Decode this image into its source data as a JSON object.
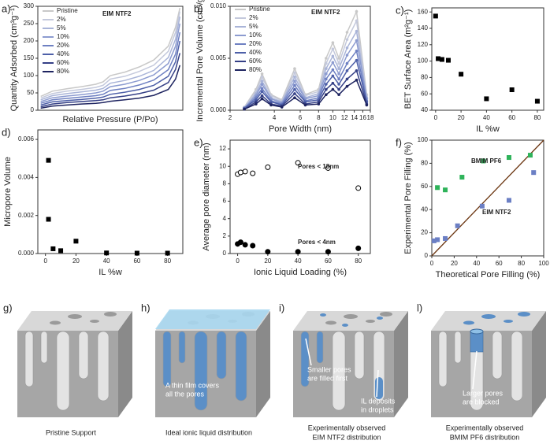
{
  "chart_data": [
    {
      "type": "line",
      "panel_label": "a)",
      "x_label": "Relative Pressure (P/Po)",
      "y_label": "Quantity Adsorbed (cm³g⁻¹)",
      "annotations": [
        "EIM NTF2"
      ],
      "legend": "upper left",
      "markers": false,
      "x": [
        0.02,
        0.1,
        0.2,
        0.3,
        0.4,
        0.45,
        0.5,
        0.6,
        0.7,
        0.8,
        0.9,
        0.95,
        0.98
      ],
      "xlim": [
        0,
        1
      ],
      "ylim": [
        0,
        300
      ],
      "yticks": [
        0,
        50,
        100,
        150,
        200,
        250,
        300
      ],
      "series": [
        {
          "name": "Pristine",
          "color": "#c8c8c8",
          "values": [
            40,
            55,
            62,
            68,
            75,
            82,
            100,
            110,
            125,
            145,
            185,
            240,
            295
          ]
        },
        {
          "name": "2%",
          "color": "#c4c9dc",
          "values": [
            35,
            48,
            55,
            60,
            66,
            72,
            90,
            98,
            112,
            130,
            170,
            225,
            285
          ]
        },
        {
          "name": "5%",
          "color": "#a9b4d8",
          "values": [
            30,
            42,
            48,
            53,
            58,
            63,
            78,
            86,
            98,
            115,
            152,
            205,
            270
          ]
        },
        {
          "name": "10%",
          "color": "#8c9bd0",
          "values": [
            25,
            36,
            41,
            45,
            50,
            55,
            68,
            75,
            86,
            102,
            135,
            185,
            250
          ]
        },
        {
          "name": "20%",
          "color": "#6e80c2",
          "values": [
            20,
            30,
            34,
            38,
            42,
            46,
            57,
            63,
            73,
            87,
            117,
            162,
            225
          ]
        },
        {
          "name": "40%",
          "color": "#4d5fa8",
          "values": [
            15,
            24,
            28,
            31,
            35,
            38,
            46,
            52,
            60,
            72,
            98,
            140,
            200
          ]
        },
        {
          "name": "60%",
          "color": "#343f86",
          "values": [
            10,
            18,
            22,
            25,
            28,
            30,
            36,
            41,
            48,
            58,
            80,
            118,
            165
          ]
        },
        {
          "name": "80%",
          "color": "#1e2460",
          "values": [
            6,
            12,
            15,
            18,
            20,
            22,
            26,
            30,
            35,
            43,
            60,
            90,
            130
          ]
        }
      ]
    },
    {
      "type": "line",
      "panel_label": "b)",
      "x_label": "Pore Width (nm)",
      "y_label": "Incremental Pore Volume (cm³/g)",
      "annotations": [
        "EIM NTF2"
      ],
      "legend": "upper left",
      "markers": true,
      "log_x": true,
      "x": [
        2.5,
        3,
        3.3,
        3.8,
        4.5,
        5.5,
        6.5,
        8,
        9,
        10,
        11,
        12.5,
        14.5,
        17
      ],
      "xlim": [
        2,
        18
      ],
      "xticks": [
        2,
        4,
        6,
        8,
        10,
        12,
        14,
        16,
        18
      ],
      "ylim": [
        0,
        0.01
      ],
      "yticks": [
        {
          "value": 0,
          "label": "0.000"
        },
        {
          "value": 0.005,
          "label": "0.005"
        },
        {
          "value": 0.01,
          "label": "0.010"
        }
      ],
      "series": [
        {
          "name": "Pristine",
          "color": "#c8c8c8",
          "values": [
            0.0003,
            0.002,
            0.0035,
            0.0015,
            0.001,
            0.004,
            0.0015,
            0.002,
            0.005,
            0.0065,
            0.005,
            0.0075,
            0.0095,
            0.0015
          ]
        },
        {
          "name": "2%",
          "color": "#c4c9dc",
          "values": [
            0.0003,
            0.0018,
            0.0032,
            0.0014,
            0.0009,
            0.0036,
            0.0014,
            0.0018,
            0.0045,
            0.0059,
            0.0045,
            0.0068,
            0.0086,
            0.0014
          ]
        },
        {
          "name": "5%",
          "color": "#a9b4d8",
          "values": [
            0.0002,
            0.0016,
            0.0028,
            0.0012,
            0.0008,
            0.0032,
            0.0012,
            0.0016,
            0.004,
            0.0052,
            0.004,
            0.006,
            0.0076,
            0.0012
          ]
        },
        {
          "name": "10%",
          "color": "#8c9bd0",
          "values": [
            0.0002,
            0.0014,
            0.0025,
            0.0011,
            0.0007,
            0.0028,
            0.0011,
            0.0014,
            0.0035,
            0.0046,
            0.0035,
            0.0053,
            0.0067,
            0.0011
          ]
        },
        {
          "name": "20%",
          "color": "#6e80c2",
          "values": [
            0.0002,
            0.0012,
            0.0021,
            0.0009,
            0.0006,
            0.0024,
            0.0009,
            0.0012,
            0.003,
            0.0039,
            0.003,
            0.0045,
            0.0057,
            0.0009
          ]
        },
        {
          "name": "40%",
          "color": "#4d5fa8",
          "values": [
            0.0002,
            0.001,
            0.0018,
            0.0008,
            0.0005,
            0.002,
            0.0008,
            0.001,
            0.0025,
            0.0033,
            0.0025,
            0.0038,
            0.0048,
            0.0008
          ]
        },
        {
          "name": "60%",
          "color": "#343f86",
          "values": [
            0.0001,
            0.0008,
            0.0014,
            0.0006,
            0.0004,
            0.0016,
            0.0006,
            0.0008,
            0.002,
            0.0026,
            0.002,
            0.003,
            0.0038,
            0.0006
          ]
        },
        {
          "name": "80%",
          "color": "#1e2460",
          "values": [
            0.0001,
            0.0006,
            0.0011,
            0.0005,
            0.0003,
            0.0012,
            0.0005,
            0.0006,
            0.0015,
            0.002,
            0.0015,
            0.0023,
            0.0029,
            0.0005
          ]
        }
      ]
    },
    {
      "type": "scatter",
      "panel_label": "c)",
      "x_label": "IL %w",
      "y_label": "BET Surface Area (m²g⁻¹)",
      "xlim": [
        -3,
        85
      ],
      "xticks": [
        0,
        20,
        40,
        60,
        80
      ],
      "ylim": [
        40,
        165
      ],
      "yticks": [
        40,
        60,
        80,
        100,
        120,
        140,
        160
      ],
      "series": [
        {
          "color": "#000000",
          "marker": "square",
          "filled": true,
          "x": [
            0,
            2,
            5,
            10,
            20,
            40,
            60,
            80
          ],
          "values": [
            155,
            103,
            102,
            101,
            84,
            54,
            65,
            51
          ]
        }
      ]
    },
    {
      "type": "scatter",
      "panel_label": "d)",
      "x_label": "IL %w",
      "y_label": "Micropore Volume",
      "xlim": [
        -5,
        90
      ],
      "xticks": [
        0,
        20,
        40,
        60,
        80
      ],
      "ylim": [
        0,
        0.0065
      ],
      "yticks": [
        {
          "value": 0,
          "label": "0.000"
        },
        {
          "value": 0.002,
          "label": "0.002"
        },
        {
          "value": 0.004,
          "label": "0.004"
        },
        {
          "value": 0.006,
          "label": "0.006"
        }
      ],
      "series": [
        {
          "color": "#000000",
          "marker": "square",
          "filled": true,
          "x": [
            2,
            2,
            5,
            10,
            20,
            40,
            60,
            80
          ],
          "values": [
            0.0049,
            0.0018,
            0.00025,
            0.00015,
            0.00065,
            3e-05,
            2e-05,
            2e-05
          ]
        }
      ]
    },
    {
      "type": "scatter",
      "panel_label": "e)",
      "x_label": "Ionic Liquid Loading (%)",
      "y_label": "Average pore diameter (nm)",
      "annotations": [
        "Pores < 18nm",
        "Pores < 4nm"
      ],
      "xlim": [
        -5,
        88
      ],
      "xticks": [
        0,
        20,
        40,
        60,
        80
      ],
      "ylim": [
        0,
        13
      ],
      "yticks": [
        0,
        2,
        4,
        6,
        8,
        10,
        12
      ],
      "series": [
        {
          "color": "#000000",
          "marker": "circle",
          "filled": false,
          "x": [
            0,
            2,
            5,
            10,
            20,
            40,
            60,
            80
          ],
          "values": [
            9.1,
            9.3,
            9.4,
            9.2,
            9.9,
            10.4,
            9.8,
            7.5
          ]
        },
        {
          "color": "#000000",
          "marker": "circle",
          "filled": true,
          "x": [
            0,
            2,
            5,
            10,
            20,
            40,
            60,
            80
          ],
          "values": [
            1.1,
            1.3,
            1.0,
            0.9,
            0.2,
            0.2,
            0.2,
            0.6
          ]
        }
      ]
    },
    {
      "type": "scatter",
      "panel_label": "f)",
      "x_label": "Theoretical Pore Filling (%)",
      "y_label": "Experimental Pore Filling (%)",
      "diagonal_color": "#6b3510",
      "xlim": [
        0,
        100
      ],
      "xticks": [
        0,
        20,
        40,
        60,
        80,
        100
      ],
      "ylim": [
        0,
        100
      ],
      "yticks": [
        0,
        20,
        40,
        60,
        80,
        100
      ],
      "series": [
        {
          "name": "BMIM PF6",
          "color": "#2fb35a",
          "marker": "square",
          "filled": true,
          "x": [
            5,
            12,
            27,
            46,
            69,
            88
          ],
          "values": [
            59,
            57,
            68,
            82,
            85,
            87
          ]
        },
        {
          "name": "EIM NTF2",
          "color": "#6b7fc4",
          "marker": "square",
          "filled": true,
          "x": [
            2,
            5,
            12,
            23,
            45,
            69,
            91
          ],
          "values": [
            13,
            14,
            15,
            26,
            43,
            48,
            72
          ]
        }
      ]
    }
  ],
  "illustrations": [
    {
      "panel_label": "g)",
      "caption": [
        "Pristine Support"
      ]
    },
    {
      "panel_label": "h)",
      "callouts": [
        [
          "A thin film covers",
          "all the pores"
        ]
      ],
      "caption": [
        "Ideal ionic liquid distribution"
      ]
    },
    {
      "panel_label": "i)",
      "callouts": [
        [
          "Smaller pores",
          "are filled first"
        ],
        [
          "IL deposits",
          "in droplets"
        ]
      ],
      "caption": [
        "Experimentally observed",
        "EIM NTF2 distribution"
      ]
    },
    {
      "panel_label": "l)",
      "callouts": [
        [
          "Larger pores",
          "are blocked"
        ]
      ],
      "caption": [
        "Experimentally observed",
        "BMIM PF6 distribution"
      ]
    }
  ]
}
